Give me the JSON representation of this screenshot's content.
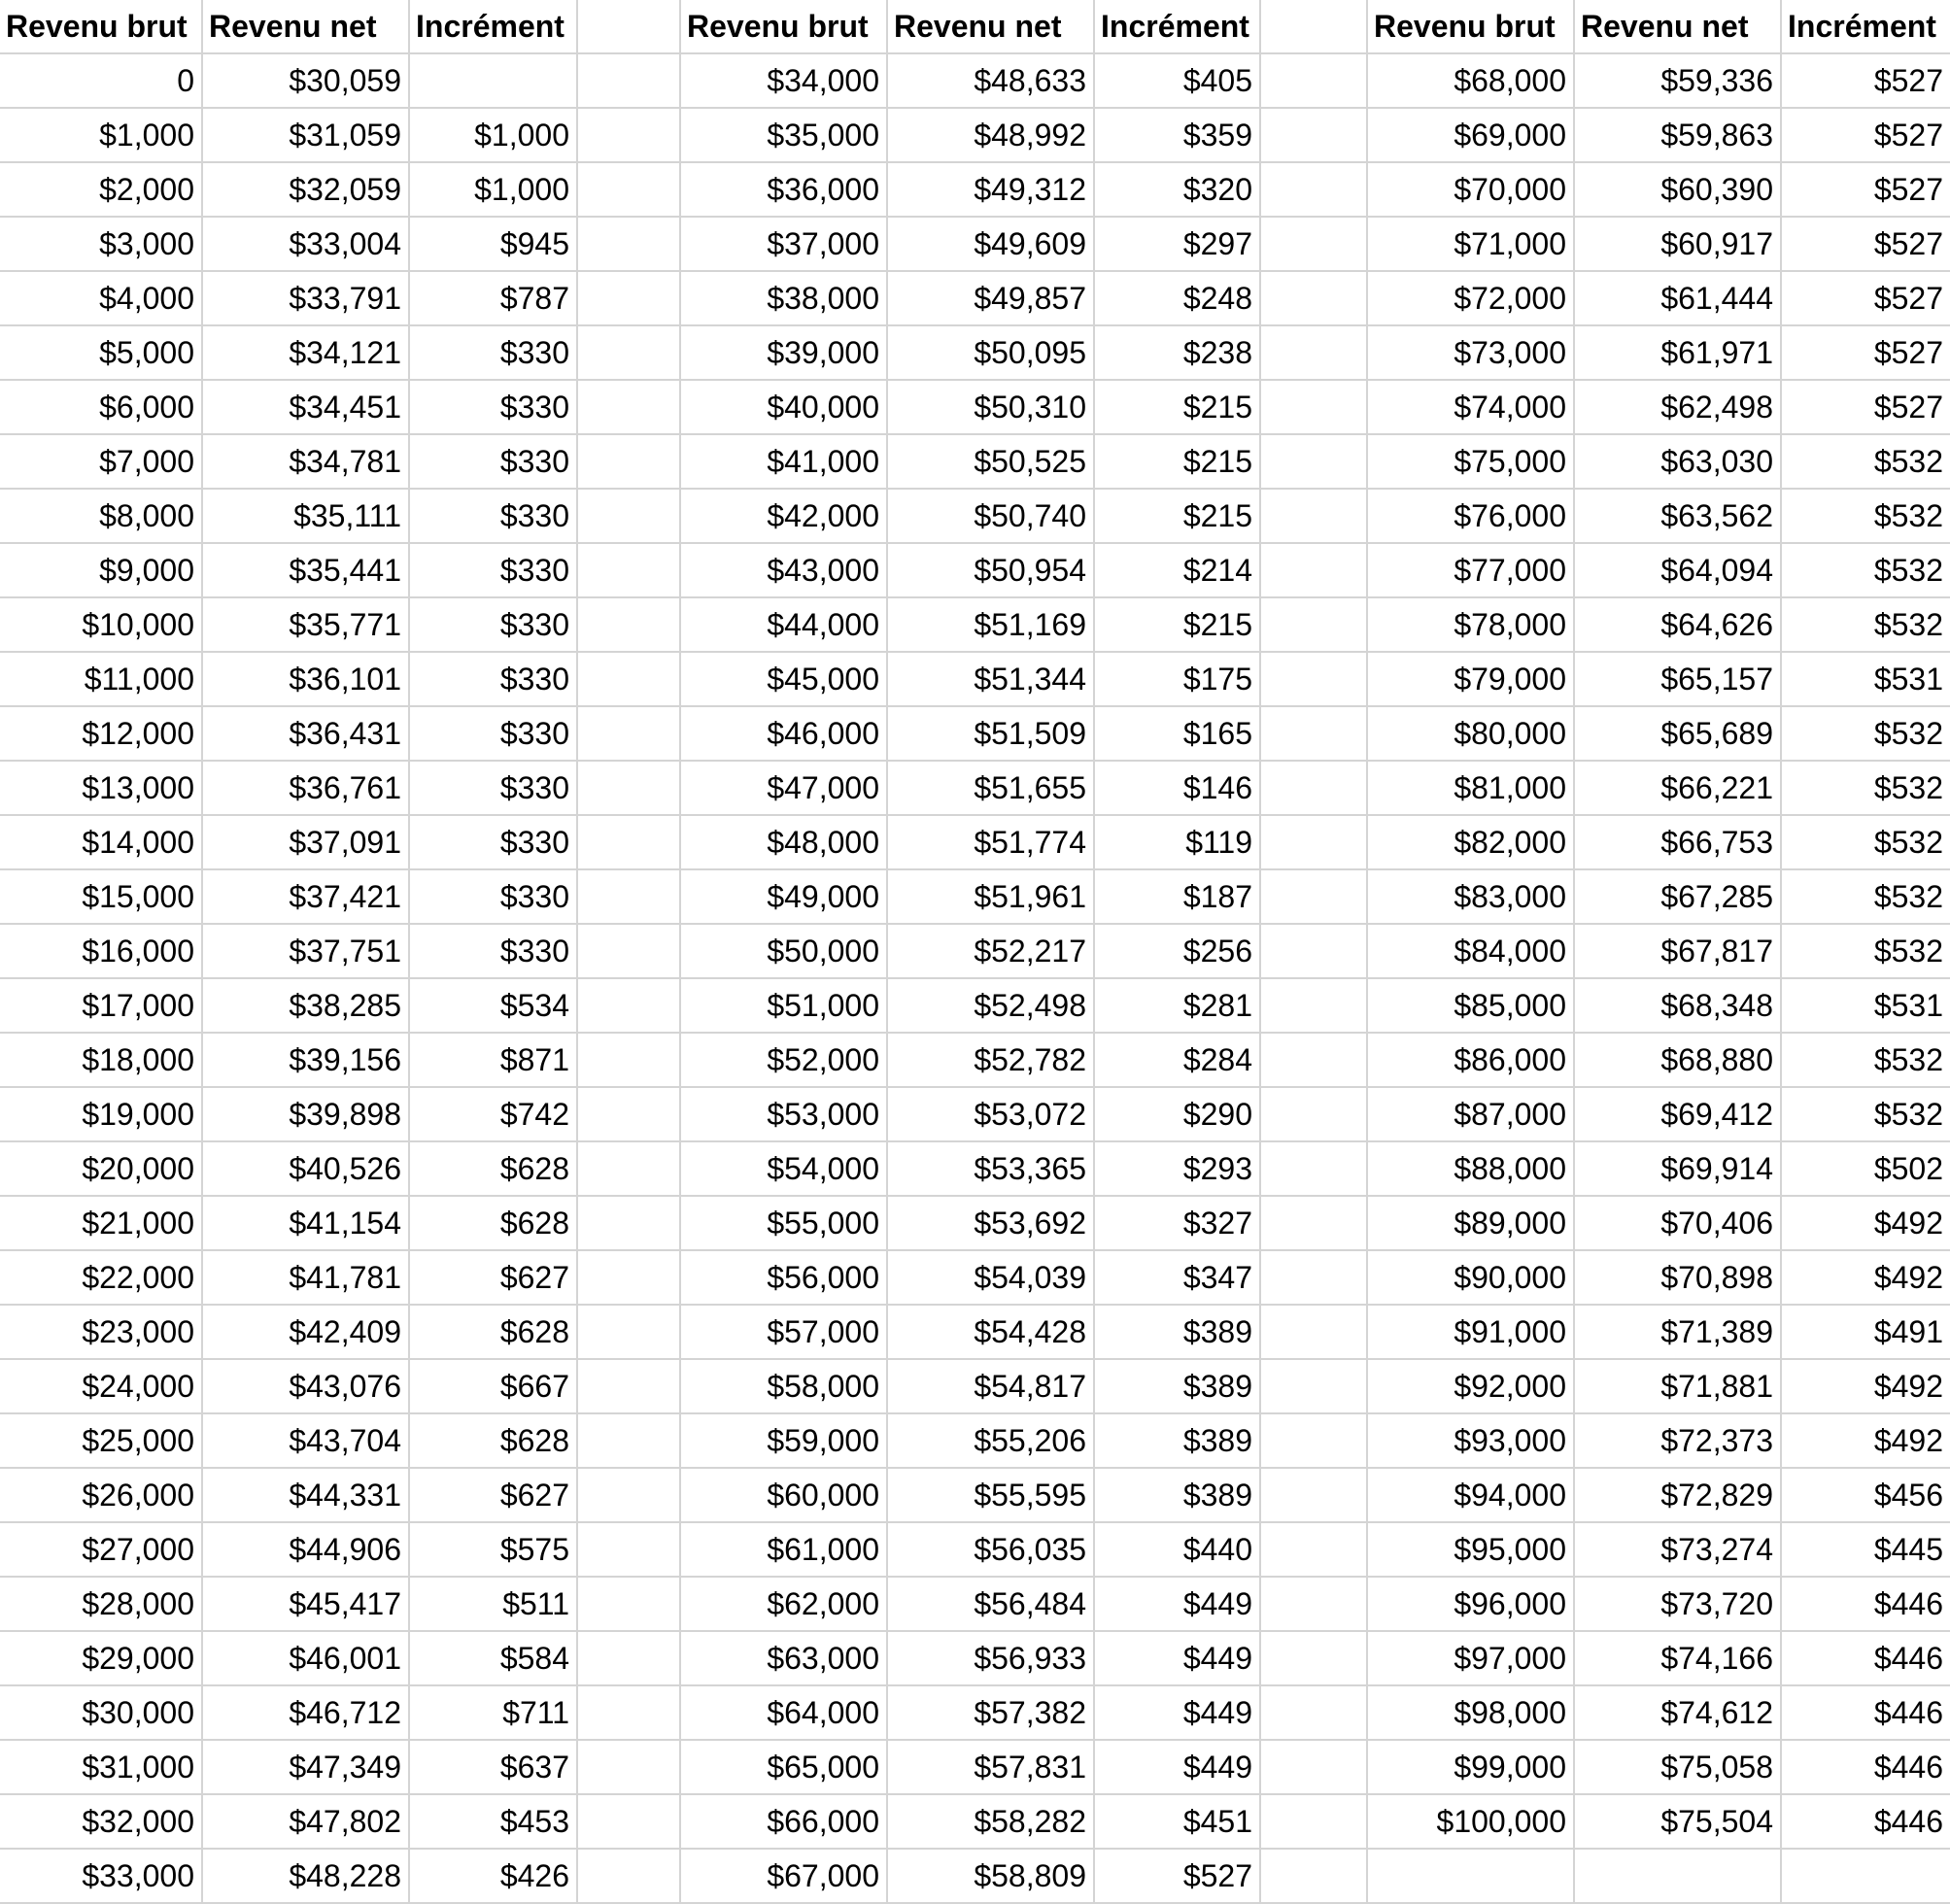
{
  "headers": [
    "Revenu brut",
    "Revenu net",
    "Incrément"
  ],
  "blocks": [
    {
      "rows": [
        [
          "0",
          "$30,059",
          ""
        ],
        [
          "$1,000",
          "$31,059",
          "$1,000"
        ],
        [
          "$2,000",
          "$32,059",
          "$1,000"
        ],
        [
          "$3,000",
          "$33,004",
          "$945"
        ],
        [
          "$4,000",
          "$33,791",
          "$787"
        ],
        [
          "$5,000",
          "$34,121",
          "$330"
        ],
        [
          "$6,000",
          "$34,451",
          "$330"
        ],
        [
          "$7,000",
          "$34,781",
          "$330"
        ],
        [
          "$8,000",
          "$35,111",
          "$330"
        ],
        [
          "$9,000",
          "$35,441",
          "$330"
        ],
        [
          "$10,000",
          "$35,771",
          "$330"
        ],
        [
          "$11,000",
          "$36,101",
          "$330"
        ],
        [
          "$12,000",
          "$36,431",
          "$330"
        ],
        [
          "$13,000",
          "$36,761",
          "$330"
        ],
        [
          "$14,000",
          "$37,091",
          "$330"
        ],
        [
          "$15,000",
          "$37,421",
          "$330"
        ],
        [
          "$16,000",
          "$37,751",
          "$330"
        ],
        [
          "$17,000",
          "$38,285",
          "$534"
        ],
        [
          "$18,000",
          "$39,156",
          "$871"
        ],
        [
          "$19,000",
          "$39,898",
          "$742"
        ],
        [
          "$20,000",
          "$40,526",
          "$628"
        ],
        [
          "$21,000",
          "$41,154",
          "$628"
        ],
        [
          "$22,000",
          "$41,781",
          "$627"
        ],
        [
          "$23,000",
          "$42,409",
          "$628"
        ],
        [
          "$24,000",
          "$43,076",
          "$667"
        ],
        [
          "$25,000",
          "$43,704",
          "$628"
        ],
        [
          "$26,000",
          "$44,331",
          "$627"
        ],
        [
          "$27,000",
          "$44,906",
          "$575"
        ],
        [
          "$28,000",
          "$45,417",
          "$511"
        ],
        [
          "$29,000",
          "$46,001",
          "$584"
        ],
        [
          "$30,000",
          "$46,712",
          "$711"
        ],
        [
          "$31,000",
          "$47,349",
          "$637"
        ],
        [
          "$32,000",
          "$47,802",
          "$453"
        ],
        [
          "$33,000",
          "$48,228",
          "$426"
        ]
      ]
    },
    {
      "rows": [
        [
          "$34,000",
          "$48,633",
          "$405"
        ],
        [
          "$35,000",
          "$48,992",
          "$359"
        ],
        [
          "$36,000",
          "$49,312",
          "$320"
        ],
        [
          "$37,000",
          "$49,609",
          "$297"
        ],
        [
          "$38,000",
          "$49,857",
          "$248"
        ],
        [
          "$39,000",
          "$50,095",
          "$238"
        ],
        [
          "$40,000",
          "$50,310",
          "$215"
        ],
        [
          "$41,000",
          "$50,525",
          "$215"
        ],
        [
          "$42,000",
          "$50,740",
          "$215"
        ],
        [
          "$43,000",
          "$50,954",
          "$214"
        ],
        [
          "$44,000",
          "$51,169",
          "$215"
        ],
        [
          "$45,000",
          "$51,344",
          "$175"
        ],
        [
          "$46,000",
          "$51,509",
          "$165"
        ],
        [
          "$47,000",
          "$51,655",
          "$146"
        ],
        [
          "$48,000",
          "$51,774",
          "$119"
        ],
        [
          "$49,000",
          "$51,961",
          "$187"
        ],
        [
          "$50,000",
          "$52,217",
          "$256"
        ],
        [
          "$51,000",
          "$52,498",
          "$281"
        ],
        [
          "$52,000",
          "$52,782",
          "$284"
        ],
        [
          "$53,000",
          "$53,072",
          "$290"
        ],
        [
          "$54,000",
          "$53,365",
          "$293"
        ],
        [
          "$55,000",
          "$53,692",
          "$327"
        ],
        [
          "$56,000",
          "$54,039",
          "$347"
        ],
        [
          "$57,000",
          "$54,428",
          "$389"
        ],
        [
          "$58,000",
          "$54,817",
          "$389"
        ],
        [
          "$59,000",
          "$55,206",
          "$389"
        ],
        [
          "$60,000",
          "$55,595",
          "$389"
        ],
        [
          "$61,000",
          "$56,035",
          "$440"
        ],
        [
          "$62,000",
          "$56,484",
          "$449"
        ],
        [
          "$63,000",
          "$56,933",
          "$449"
        ],
        [
          "$64,000",
          "$57,382",
          "$449"
        ],
        [
          "$65,000",
          "$57,831",
          "$449"
        ],
        [
          "$66,000",
          "$58,282",
          "$451"
        ],
        [
          "$67,000",
          "$58,809",
          "$527"
        ]
      ]
    },
    {
      "rows": [
        [
          "$68,000",
          "$59,336",
          "$527"
        ],
        [
          "$69,000",
          "$59,863",
          "$527"
        ],
        [
          "$70,000",
          "$60,390",
          "$527"
        ],
        [
          "$71,000",
          "$60,917",
          "$527"
        ],
        [
          "$72,000",
          "$61,444",
          "$527"
        ],
        [
          "$73,000",
          "$61,971",
          "$527"
        ],
        [
          "$74,000",
          "$62,498",
          "$527"
        ],
        [
          "$75,000",
          "$63,030",
          "$532"
        ],
        [
          "$76,000",
          "$63,562",
          "$532"
        ],
        [
          "$77,000",
          "$64,094",
          "$532"
        ],
        [
          "$78,000",
          "$64,626",
          "$532"
        ],
        [
          "$79,000",
          "$65,157",
          "$531"
        ],
        [
          "$80,000",
          "$65,689",
          "$532"
        ],
        [
          "$81,000",
          "$66,221",
          "$532"
        ],
        [
          "$82,000",
          "$66,753",
          "$532"
        ],
        [
          "$83,000",
          "$67,285",
          "$532"
        ],
        [
          "$84,000",
          "$67,817",
          "$532"
        ],
        [
          "$85,000",
          "$68,348",
          "$531"
        ],
        [
          "$86,000",
          "$68,880",
          "$532"
        ],
        [
          "$87,000",
          "$69,412",
          "$532"
        ],
        [
          "$88,000",
          "$69,914",
          "$502"
        ],
        [
          "$89,000",
          "$70,406",
          "$492"
        ],
        [
          "$90,000",
          "$70,898",
          "$492"
        ],
        [
          "$91,000",
          "$71,389",
          "$491"
        ],
        [
          "$92,000",
          "$71,881",
          "$492"
        ],
        [
          "$93,000",
          "$72,373",
          "$492"
        ],
        [
          "$94,000",
          "$72,829",
          "$456"
        ],
        [
          "$95,000",
          "$73,274",
          "$445"
        ],
        [
          "$96,000",
          "$73,720",
          "$446"
        ],
        [
          "$97,000",
          "$74,166",
          "$446"
        ],
        [
          "$98,000",
          "$74,612",
          "$446"
        ],
        [
          "$99,000",
          "$75,058",
          "$446"
        ],
        [
          "$100,000",
          "$75,504",
          "$446"
        ],
        [
          "",
          "",
          ""
        ]
      ]
    }
  ]
}
